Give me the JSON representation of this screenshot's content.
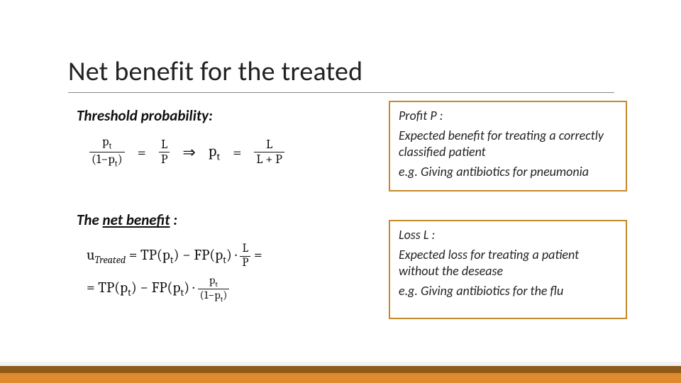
{
  "title": "Net benefit for the treated",
  "threshold": {
    "label": "Threshold probability:",
    "frac1_num": "p",
    "frac1_num_sub": "t",
    "frac1_den_a": "(1−p",
    "frac1_den_sub": "t",
    "frac1_den_b": ")",
    "eq1": "=",
    "frac2_num": "L",
    "frac2_den": "P",
    "arrow": "⇒",
    "lhs2_a": "p",
    "lhs2_sub": "t",
    "eq2": "=",
    "frac3_num": "L",
    "frac3_den": "L + P"
  },
  "netbenefit": {
    "label_pre": "The ",
    "label_ul": "net benefit",
    "label_post": " :",
    "line1_a": "u",
    "line1_sub": "Treated",
    "line1_b": " = TP(p",
    "line1_sub2": "t",
    "line1_c": ") − FP(p",
    "line1_sub3": "t",
    "line1_d": ") · ",
    "line1_frac_num": "L",
    "line1_frac_den": "P",
    "line1_e": " =",
    "line2_a": "= TP(p",
    "line2_sub1": "t",
    "line2_b": ") − FP(p",
    "line2_sub2": "t",
    "line2_c": ") · ",
    "line2_frac_num_a": "p",
    "line2_frac_num_sub": "t",
    "line2_frac_den_a": "(1−p",
    "line2_frac_den_sub": "t",
    "line2_frac_den_b": ")"
  },
  "profit_box": {
    "label": "Profit P :",
    "desc": "Expected benefit for treating a correctly classified patient",
    "eg": "e.g. Giving antibiotics for pneumonia"
  },
  "loss_box": {
    "label": "Loss L :",
    "desc": "Expected loss for treating a patient without the desease",
    "eg": "e.g. Giving antibiotics for the flu"
  },
  "colors": {
    "box_border": "#c58a2a",
    "footer_dark": "#8f5a1a",
    "footer_orange": "#e08a2e",
    "footer_light": "#f2f2f2"
  }
}
